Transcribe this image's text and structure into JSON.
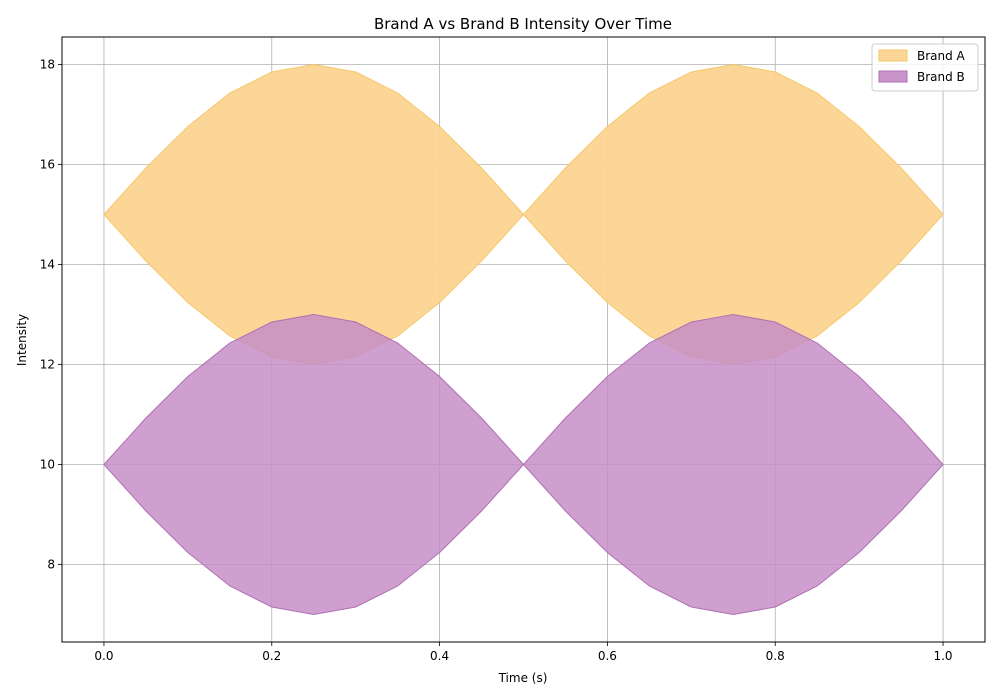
{
  "chart_data": {
    "type": "area",
    "title": "Brand A vs Brand B Intensity Over Time",
    "xlabel": "Time (s)",
    "ylabel": "Intensity",
    "xlim": [
      -0.05,
      1.05
    ],
    "ylim": [
      6.45,
      18.55
    ],
    "xticks": [
      0.0,
      0.2,
      0.4,
      0.6,
      0.8,
      1.0
    ],
    "xtick_labels": [
      "0.0",
      "0.2",
      "0.4",
      "0.6",
      "0.8",
      "1.0"
    ],
    "yticks": [
      8,
      10,
      12,
      14,
      16,
      18
    ],
    "ytick_labels": [
      "8",
      "10",
      "12",
      "14",
      "16",
      "18"
    ],
    "grid": true,
    "legend_position": "top-right",
    "x": [
      0.0,
      0.05,
      0.1,
      0.15,
      0.2,
      0.25,
      0.3,
      0.35,
      0.4,
      0.45,
      0.5,
      0.55,
      0.6,
      0.65,
      0.7,
      0.75,
      0.8,
      0.85,
      0.9,
      0.95,
      1.0
    ],
    "series": [
      {
        "name": "Brand A",
        "color": "#fcd490",
        "edge_color": "#f5c76a",
        "upper": [
          15.0,
          15.93,
          16.76,
          17.43,
          17.85,
          18.0,
          17.85,
          17.43,
          16.76,
          15.93,
          15.0,
          15.93,
          16.76,
          17.43,
          17.85,
          18.0,
          17.85,
          17.43,
          16.76,
          15.93,
          15.0
        ],
        "lower": [
          15.0,
          14.07,
          13.24,
          12.57,
          12.15,
          12.0,
          12.15,
          12.57,
          13.24,
          14.07,
          15.0,
          14.07,
          13.24,
          12.57,
          12.15,
          12.0,
          12.15,
          12.57,
          13.24,
          14.07,
          15.0
        ]
      },
      {
        "name": "Brand B",
        "color": "#c58ec7",
        "edge_color": "#b070b3",
        "upper": [
          10.0,
          10.93,
          11.76,
          12.43,
          12.85,
          13.0,
          12.85,
          12.43,
          11.76,
          10.93,
          10.0,
          10.93,
          11.76,
          12.43,
          12.85,
          13.0,
          12.85,
          12.43,
          11.76,
          10.93,
          10.0
        ],
        "lower": [
          10.0,
          9.07,
          8.24,
          7.57,
          7.15,
          7.0,
          7.15,
          7.57,
          8.24,
          9.07,
          10.0,
          9.07,
          8.24,
          7.57,
          7.15,
          7.0,
          7.15,
          7.57,
          8.24,
          9.07,
          10.0
        ]
      }
    ]
  }
}
